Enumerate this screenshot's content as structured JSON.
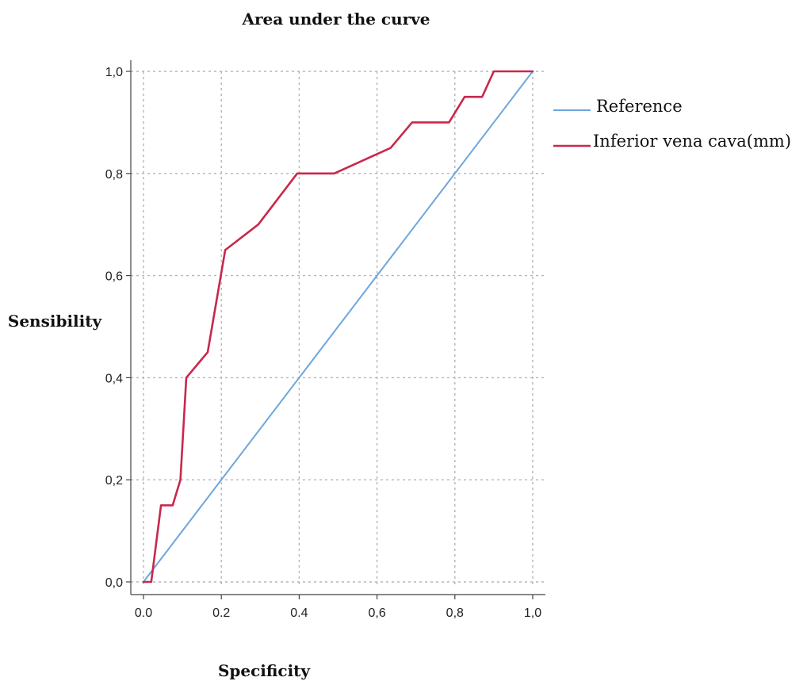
{
  "chart_data": {
    "type": "line",
    "title": "Area under the curve",
    "xlabel": "Specificity",
    "ylabel": "Sensibility",
    "xlim": [
      0,
      1
    ],
    "ylim": [
      0,
      1
    ],
    "x_ticks": [
      {
        "value": 0.0,
        "label": "0.0"
      },
      {
        "value": 0.2,
        "label": "0.2"
      },
      {
        "value": 0.4,
        "label": "0.4"
      },
      {
        "value": 0.6,
        "label": "0,6"
      },
      {
        "value": 0.8,
        "label": "0,8"
      },
      {
        "value": 1.0,
        "label": "1,0"
      }
    ],
    "y_ticks": [
      {
        "value": 0.0,
        "label": "0,0"
      },
      {
        "value": 0.2,
        "label": "0,2"
      },
      {
        "value": 0.4,
        "label": "0,4"
      },
      {
        "value": 0.6,
        "label": "0,6"
      },
      {
        "value": 0.8,
        "label": "0,8"
      },
      {
        "value": 1.0,
        "label": "1,0"
      }
    ],
    "grid": true,
    "legend_position": "right",
    "series": [
      {
        "name": "Reference",
        "color": "#6fa6dc",
        "x": [
          0,
          1
        ],
        "y": [
          0,
          1
        ]
      },
      {
        "name": "Inferior vena cava(mm)",
        "color": "#c8284b",
        "x": [
          0,
          0.02,
          0.045,
          0.075,
          0.095,
          0.11,
          0.165,
          0.21,
          0.295,
          0.395,
          0.49,
          0.635,
          0.69,
          0.785,
          0.825,
          0.87,
          0.9,
          1.0
        ],
        "y": [
          0,
          0,
          0.15,
          0.15,
          0.2,
          0.4,
          0.45,
          0.65,
          0.7,
          0.8,
          0.8,
          0.85,
          0.9,
          0.9,
          0.95,
          0.95,
          1.0,
          1.0
        ]
      }
    ]
  }
}
